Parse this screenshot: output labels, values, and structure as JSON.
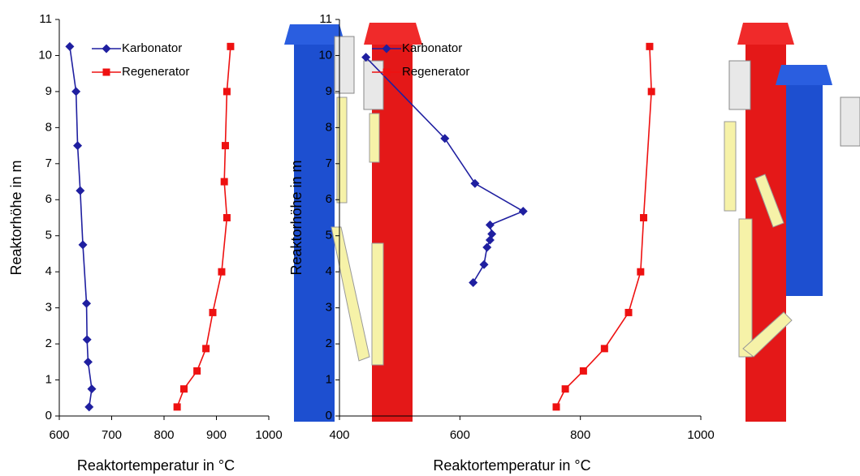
{
  "chart_data": [
    {
      "type": "line",
      "x_label": "Reaktortemperatur in °C",
      "y_label": "Reaktorhöhe in m",
      "xlim": [
        600,
        1000
      ],
      "xticks": [
        600,
        700,
        800,
        900,
        1000
      ],
      "ylim": [
        0,
        11
      ],
      "yticks": [
        0,
        1,
        2,
        3,
        4,
        5,
        6,
        7,
        8,
        9,
        10,
        11
      ],
      "legend": "top-left",
      "series": [
        {
          "name": "Karbonator",
          "color": "#1f1fa0",
          "marker": "diamond",
          "x": [
            620,
            632,
            635,
            640,
            645,
            652,
            653,
            655,
            662,
            657
          ],
          "values": [
            10.25,
            9,
            7.5,
            6.25,
            4.75,
            3.12,
            2.12,
            1.5,
            0.75,
            0.25
          ]
        },
        {
          "name": "Regenerator",
          "color": "#ee1111",
          "marker": "square",
          "x": [
            927,
            920,
            917,
            915,
            920,
            910,
            893,
            880,
            863,
            838,
            825
          ],
          "values": [
            10.25,
            9,
            7.5,
            6.5,
            5.5,
            4,
            2.87,
            1.87,
            1.25,
            0.75,
            0.25
          ]
        }
      ]
    },
    {
      "type": "line",
      "x_label": "Reaktortemperatur in °C",
      "y_label": "Reaktorhöhe in m",
      "xlim": [
        400,
        1000
      ],
      "xticks": [
        400,
        600,
        800,
        1000
      ],
      "ylim": [
        0,
        11
      ],
      "yticks": [
        0,
        1,
        2,
        3,
        4,
        5,
        6,
        7,
        8,
        9,
        10,
        11
      ],
      "legend": "top-left",
      "series": [
        {
          "name": "Karbonator",
          "color": "#1f1fa0",
          "marker": "diamond",
          "x": [
            444,
            575,
            625,
            705,
            650,
            653,
            650,
            645,
            640,
            622
          ],
          "values": [
            9.95,
            7.7,
            6.45,
            5.68,
            5.3,
            5.05,
            4.88,
            4.68,
            4.2,
            3.7
          ]
        },
        {
          "name": "Regenerator",
          "color": "#ee1111",
          "marker": "square",
          "x": [
            915,
            918,
            905,
            900,
            880,
            840,
            805,
            775,
            760
          ],
          "values": [
            10.25,
            9,
            5.5,
            4,
            2.87,
            1.87,
            1.25,
            0.75,
            0.25
          ]
        }
      ]
    }
  ]
}
